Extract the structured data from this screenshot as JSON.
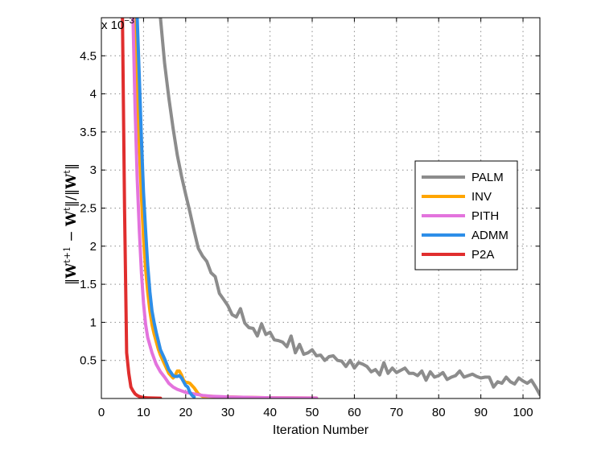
{
  "chart_data": {
    "type": "line",
    "xlabel": "Iteration Number",
    "ylabel": "||W^{t+1} − W^t||/||W^t||",
    "ylabel_parts": {
      "open": "‖",
      "W1": "W",
      "sup1": "t+1",
      "minus": " − ",
      "W2": "W",
      "sup2": "t",
      "mid": "‖/‖",
      "W3": "W",
      "sup3": "t",
      "close": "‖"
    },
    "y_multiplier": "x 10",
    "y_multiplier_exp": "−3",
    "xlim": [
      0,
      104
    ],
    "ylim": [
      0,
      5
    ],
    "xticks": [
      0,
      10,
      20,
      30,
      40,
      50,
      60,
      70,
      80,
      90,
      100
    ],
    "yticks": [
      0.5,
      1,
      1.5,
      2,
      2.5,
      3,
      3.5,
      4,
      4.5
    ],
    "ytick_labels": [
      "0.5",
      "1",
      "1.5",
      "2",
      "2.5",
      "3",
      "3.5",
      "4",
      "4.5"
    ],
    "grid": true,
    "legend_position": "right",
    "series": [
      {
        "name": "PALM",
        "color": "#8c8c8c",
        "x": [
          14,
          15,
          16,
          17,
          18,
          19,
          20,
          21,
          22,
          23,
          24,
          25,
          26,
          27,
          28,
          29,
          30,
          31,
          32,
          33,
          34,
          35,
          36,
          37,
          38,
          39,
          40,
          41,
          42,
          43,
          44,
          45,
          46,
          47,
          48,
          49,
          50,
          51,
          52,
          53,
          54,
          55,
          56,
          57,
          58,
          59,
          60,
          61,
          62,
          63,
          64,
          65,
          66,
          67,
          68,
          69,
          70,
          71,
          72,
          73,
          74,
          75,
          76,
          77,
          78,
          79,
          80,
          81,
          82,
          83,
          84,
          85,
          86,
          87,
          88,
          89,
          90,
          91,
          92,
          93,
          94,
          95,
          96,
          97,
          98,
          99,
          100,
          101,
          102,
          103,
          104
        ],
        "values": [
          5.0,
          4.4,
          3.95,
          3.55,
          3.2,
          2.92,
          2.68,
          2.45,
          2.2,
          1.97,
          1.87,
          1.8,
          1.65,
          1.6,
          1.38,
          1.3,
          1.22,
          1.1,
          1.07,
          1.18,
          0.99,
          0.93,
          0.92,
          0.82,
          0.98,
          0.84,
          0.87,
          0.77,
          0.76,
          0.74,
          0.68,
          0.82,
          0.6,
          0.71,
          0.58,
          0.6,
          0.64,
          0.56,
          0.57,
          0.5,
          0.55,
          0.56,
          0.5,
          0.49,
          0.42,
          0.5,
          0.4,
          0.47,
          0.45,
          0.42,
          0.35,
          0.38,
          0.31,
          0.47,
          0.33,
          0.4,
          0.34,
          0.37,
          0.4,
          0.33,
          0.33,
          0.3,
          0.36,
          0.24,
          0.35,
          0.28,
          0.3,
          0.34,
          0.25,
          0.28,
          0.3,
          0.36,
          0.28,
          0.3,
          0.32,
          0.29,
          0.27,
          0.28,
          0.28,
          0.15,
          0.22,
          0.2,
          0.28,
          0.22,
          0.19,
          0.27,
          0.23,
          0.2,
          0.24,
          0.15,
          0.05
        ]
      },
      {
        "name": "INV",
        "color": "#ffa500",
        "x": [
          8,
          8.5,
          9,
          9.5,
          10,
          10.5,
          11,
          11.5,
          12,
          12.5,
          13,
          13.5,
          14,
          15,
          16,
          17,
          17.5,
          18,
          18.5,
          19,
          19.5,
          20,
          20.5,
          21,
          22,
          23,
          24,
          25,
          26,
          27,
          28,
          30,
          35,
          40,
          45,
          51
        ],
        "values": [
          5.0,
          4.1,
          3.3,
          2.65,
          2.1,
          1.7,
          1.4,
          1.15,
          0.97,
          0.85,
          0.75,
          0.65,
          0.57,
          0.45,
          0.33,
          0.27,
          0.3,
          0.36,
          0.36,
          0.31,
          0.24,
          0.21,
          0.21,
          0.2,
          0.14,
          0.06,
          0.03,
          0.03,
          0.03,
          0.025,
          0.02,
          0.02,
          0.015,
          0.01,
          0.008,
          0.006
        ]
      },
      {
        "name": "PITH",
        "color": "#e373dd",
        "x": [
          7.5,
          8,
          8.5,
          9,
          9.5,
          10,
          10.5,
          11,
          12,
          13,
          14,
          15,
          16,
          17,
          18,
          20,
          22,
          24,
          26,
          28,
          30,
          35,
          40,
          45,
          51
        ],
        "values": [
          5.0,
          3.8,
          2.9,
          2.2,
          1.65,
          1.25,
          0.97,
          0.8,
          0.6,
          0.45,
          0.35,
          0.28,
          0.2,
          0.15,
          0.12,
          0.08,
          0.06,
          0.04,
          0.03,
          0.025,
          0.02,
          0.015,
          0.01,
          0.008,
          0.006
        ]
      },
      {
        "name": "ADMM",
        "color": "#2d8ee8",
        "x": [
          8.5,
          9,
          9.5,
          10,
          10.5,
          11,
          11.5,
          12,
          12.5,
          13,
          13.5,
          14,
          14.5,
          15,
          15.5,
          16,
          16.5,
          17,
          17.5,
          18,
          18.5,
          19,
          19.5,
          20,
          20.5,
          21,
          21.5,
          22
        ],
        "values": [
          5.0,
          4.2,
          3.4,
          2.7,
          2.2,
          1.75,
          1.4,
          1.15,
          1.0,
          0.87,
          0.76,
          0.64,
          0.58,
          0.52,
          0.45,
          0.38,
          0.34,
          0.3,
          0.29,
          0.29,
          0.3,
          0.27,
          0.22,
          0.17,
          0.15,
          0.08,
          0.04,
          0.02
        ]
      },
      {
        "name": "P2A",
        "color": "#e02e2e",
        "x": [
          5,
          5.5,
          6,
          6.5,
          7,
          7.5,
          8,
          8.5,
          9,
          9.5,
          10,
          11,
          12,
          13,
          14
        ],
        "values": [
          5.0,
          2.5,
          0.6,
          0.33,
          0.15,
          0.1,
          0.06,
          0.04,
          0.025,
          0.018,
          0.012,
          0.008,
          0.006,
          0.005,
          0.004
        ]
      }
    ]
  }
}
